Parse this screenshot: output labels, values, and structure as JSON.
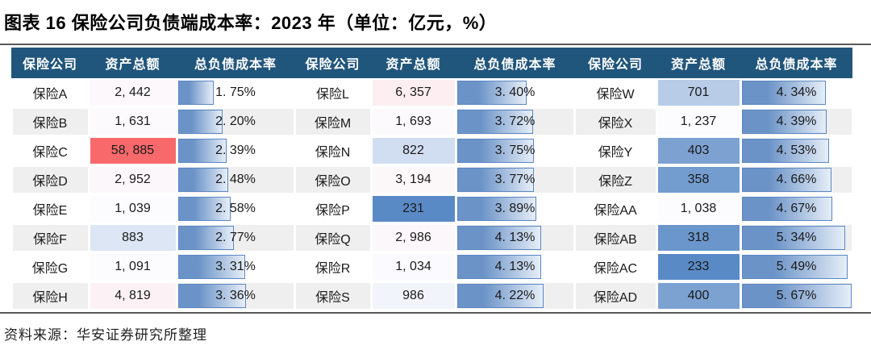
{
  "title": "图表 16 保险公司负债端成本率：2023 年（单位：亿元，%）",
  "source": "资料来源：华安证券研究所整理",
  "colors": {
    "header_bg": "#21567C",
    "stripe": "#EFEFEF",
    "row_white": "#FFFFFF",
    "divider": "#595959",
    "bar_fill": "#6B93C7",
    "bar_border": "#5B87C5",
    "scale_min_blue": "#5A8AC6",
    "scale_mid_white": "#FCFCFF",
    "scale_max_red": "#F8696B"
  },
  "table": {
    "column_headers": [
      "保险公司",
      "资产总额",
      "总负债成本率"
    ],
    "max_rate": 5.67,
    "groups": [
      {
        "rows": [
          {
            "company": "保险A",
            "assets": "2, 442",
            "assets_value": 2442,
            "rate": "1. 75%",
            "rate_value": 1.75
          },
          {
            "company": "保险B",
            "assets": "1, 631",
            "assets_value": 1631,
            "rate": "2. 20%",
            "rate_value": 2.2
          },
          {
            "company": "保险C",
            "assets": "58, 885",
            "assets_value": 58885,
            "rate": "2. 39%",
            "rate_value": 2.39
          },
          {
            "company": "保险D",
            "assets": "2, 952",
            "assets_value": 2952,
            "rate": "2. 48%",
            "rate_value": 2.48
          },
          {
            "company": "保险E",
            "assets": "1, 039",
            "assets_value": 1039,
            "rate": "2. 58%",
            "rate_value": 2.58
          },
          {
            "company": "保险F",
            "assets": "883",
            "assets_value": 883,
            "rate": "2. 77%",
            "rate_value": 2.77
          },
          {
            "company": "保险G",
            "assets": "1, 091",
            "assets_value": 1091,
            "rate": "3. 31%",
            "rate_value": 3.31
          },
          {
            "company": "保险H",
            "assets": "4, 819",
            "assets_value": 4819,
            "rate": "3. 36%",
            "rate_value": 3.36
          }
        ]
      },
      {
        "rows": [
          {
            "company": "保险L",
            "assets": "6, 357",
            "assets_value": 6357,
            "rate": "3. 40%",
            "rate_value": 3.4
          },
          {
            "company": "保险M",
            "assets": "1, 693",
            "assets_value": 1693,
            "rate": "3. 72%",
            "rate_value": 3.72
          },
          {
            "company": "保险N",
            "assets": "822",
            "assets_value": 822,
            "rate": "3. 75%",
            "rate_value": 3.75
          },
          {
            "company": "保险O",
            "assets": "3, 194",
            "assets_value": 3194,
            "rate": "3. 77%",
            "rate_value": 3.77
          },
          {
            "company": "保险P",
            "assets": "231",
            "assets_value": 231,
            "rate": "3. 89%",
            "rate_value": 3.89
          },
          {
            "company": "保险Q",
            "assets": "2, 986",
            "assets_value": 2986,
            "rate": "4. 13%",
            "rate_value": 4.13
          },
          {
            "company": "保险R",
            "assets": "1, 034",
            "assets_value": 1034,
            "rate": "4. 13%",
            "rate_value": 4.13
          },
          {
            "company": "保险S",
            "assets": "986",
            "assets_value": 986,
            "rate": "4. 22%",
            "rate_value": 4.22
          }
        ]
      },
      {
        "rows": [
          {
            "company": "保险W",
            "assets": "701",
            "assets_value": 701,
            "rate": "4. 34%",
            "rate_value": 4.34
          },
          {
            "company": "保险X",
            "assets": "1, 237",
            "assets_value": 1237,
            "rate": "4. 39%",
            "rate_value": 4.39
          },
          {
            "company": "保险Y",
            "assets": "403",
            "assets_value": 403,
            "rate": "4. 53%",
            "rate_value": 4.53
          },
          {
            "company": "保险Z",
            "assets": "358",
            "assets_value": 358,
            "rate": "4. 66%",
            "rate_value": 4.66
          },
          {
            "company": "保险AA",
            "assets": "1, 038",
            "assets_value": 1038,
            "rate": "4. 67%",
            "rate_value": 4.67
          },
          {
            "company": "保险AB",
            "assets": "318",
            "assets_value": 318,
            "rate": "5. 34%",
            "rate_value": 5.34
          },
          {
            "company": "保险AC",
            "assets": "233",
            "assets_value": 233,
            "rate": "5. 49%",
            "rate_value": 5.49
          },
          {
            "company": "保险AD",
            "assets": "400",
            "assets_value": 400,
            "rate": "5. 67%",
            "rate_value": 5.67
          }
        ]
      }
    ]
  },
  "chart_data": {
    "type": "table",
    "title": "图表 16 保险公司负债端成本率：2023 年（单位：亿元，%）",
    "columns": [
      "保险公司",
      "资产总额",
      "总负债成本率"
    ],
    "rows": [
      {
        "company": "保险A",
        "assets": 2442,
        "rate_pct": 1.75
      },
      {
        "company": "保险B",
        "assets": 1631,
        "rate_pct": 2.2
      },
      {
        "company": "保险C",
        "assets": 58885,
        "rate_pct": 2.39
      },
      {
        "company": "保险D",
        "assets": 2952,
        "rate_pct": 2.48
      },
      {
        "company": "保险E",
        "assets": 1039,
        "rate_pct": 2.58
      },
      {
        "company": "保险F",
        "assets": 883,
        "rate_pct": 2.77
      },
      {
        "company": "保险G",
        "assets": 1091,
        "rate_pct": 3.31
      },
      {
        "company": "保险H",
        "assets": 4819,
        "rate_pct": 3.36
      },
      {
        "company": "保险L",
        "assets": 6357,
        "rate_pct": 3.4
      },
      {
        "company": "保险M",
        "assets": 1693,
        "rate_pct": 3.72
      },
      {
        "company": "保险N",
        "assets": 822,
        "rate_pct": 3.75
      },
      {
        "company": "保险O",
        "assets": 3194,
        "rate_pct": 3.77
      },
      {
        "company": "保险P",
        "assets": 231,
        "rate_pct": 3.89
      },
      {
        "company": "保险Q",
        "assets": 2986,
        "rate_pct": 4.13
      },
      {
        "company": "保险R",
        "assets": 1034,
        "rate_pct": 4.13
      },
      {
        "company": "保险S",
        "assets": 986,
        "rate_pct": 4.22
      },
      {
        "company": "保险W",
        "assets": 701,
        "rate_pct": 4.34
      },
      {
        "company": "保险X",
        "assets": 1237,
        "rate_pct": 4.39
      },
      {
        "company": "保险Y",
        "assets": 403,
        "rate_pct": 4.53
      },
      {
        "company": "保险Z",
        "assets": 358,
        "rate_pct": 4.66
      },
      {
        "company": "保险AA",
        "assets": 1038,
        "rate_pct": 4.67
      },
      {
        "company": "保险AB",
        "assets": 318,
        "rate_pct": 5.34
      },
      {
        "company": "保险AC",
        "assets": 233,
        "rate_pct": 5.49
      },
      {
        "company": "保险AD",
        "assets": 400,
        "rate_pct": 5.67
      }
    ],
    "formatting": {
      "assets_color_scale": [
        "#5A8AC6",
        "#FCFCFF",
        "#F8696B"
      ],
      "rate_data_bar_color": "#6B93C7",
      "rate_bar_axis": [
        0,
        5.67
      ]
    },
    "source": "资料来源：华安证券研究所整理"
  }
}
